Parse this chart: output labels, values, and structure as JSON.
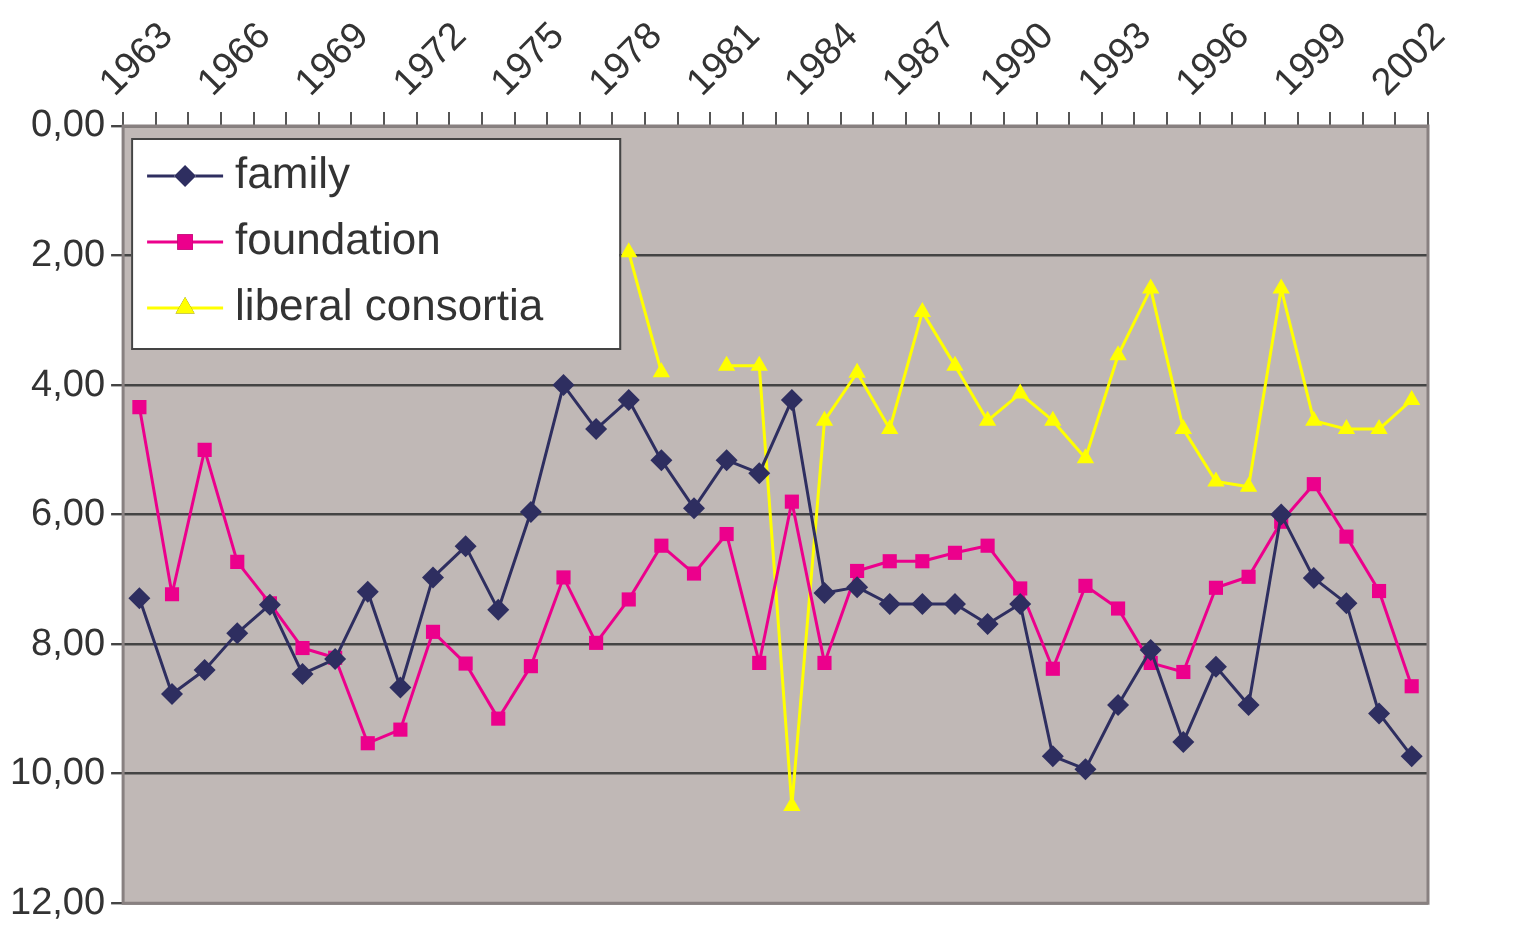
{
  "chart_data": {
    "type": "line",
    "categories": [
      "1963",
      null,
      null,
      "1966",
      null,
      null,
      "1969",
      null,
      null,
      "1972",
      null,
      null,
      "1975",
      null,
      null,
      "1978",
      null,
      null,
      "1981",
      null,
      null,
      "1984",
      null,
      null,
      "1987",
      null,
      null,
      "1990",
      null,
      null,
      "1993",
      null,
      null,
      "1996",
      null,
      null,
      "1999",
      null,
      null,
      "2002"
    ],
    "series": [
      {
        "name": "family",
        "color": "#2e2e60",
        "marker": "diamond",
        "values": [
          7.29,
          8.77,
          8.4,
          7.83,
          7.39,
          8.46,
          8.23,
          7.19,
          8.67,
          6.97,
          6.49,
          7.47,
          5.96,
          4.0,
          4.68,
          4.23,
          5.16,
          5.9,
          5.16,
          5.36,
          4.23,
          7.21,
          7.12,
          7.38,
          7.38,
          7.38,
          7.69,
          7.38,
          9.73,
          9.93,
          8.94,
          8.09,
          9.51,
          8.35,
          8.94,
          6.0,
          6.98,
          7.37,
          9.07,
          9.73
        ]
      },
      {
        "name": "foundation",
        "color": "#ec008c",
        "marker": "square",
        "values": [
          4.34,
          7.23,
          5.0,
          6.73,
          7.37,
          8.06,
          8.21,
          9.53,
          9.32,
          7.81,
          8.3,
          9.15,
          8.34,
          6.97,
          7.98,
          7.31,
          6.48,
          6.91,
          6.3,
          8.29,
          5.8,
          8.29,
          6.87,
          6.72,
          6.72,
          6.59,
          6.48,
          7.14,
          8.38,
          7.1,
          7.45,
          8.29,
          8.43,
          7.13,
          6.96,
          6.11,
          5.53,
          6.34,
          7.18,
          8.65
        ]
      },
      {
        "name": "liberal consortia",
        "color": "#ffff00",
        "marker": "triangle",
        "values": [
          null,
          null,
          null,
          null,
          null,
          null,
          null,
          null,
          null,
          null,
          null,
          null,
          null,
          null,
          null,
          1.95,
          3.8,
          null,
          3.7,
          3.7,
          10.5,
          4.55,
          3.81,
          4.68,
          2.87,
          3.7,
          4.55,
          4.13,
          4.55,
          5.13,
          3.54,
          2.51,
          4.68,
          5.49,
          5.57,
          2.51,
          4.55,
          4.68,
          4.68,
          4.23
        ]
      }
    ],
    "ylim": [
      12,
      0
    ],
    "yticks": [
      {
        "value": 0,
        "label": "0,00"
      },
      {
        "value": 2,
        "label": "2,00"
      },
      {
        "value": 4,
        "label": "4,00"
      },
      {
        "value": 6,
        "label": "6,00"
      },
      {
        "value": 8,
        "label": "8,00"
      },
      {
        "value": 10,
        "label": "10,00"
      },
      {
        "value": 12,
        "label": "12,00"
      }
    ],
    "grid": "y",
    "legend": "top left",
    "line_style": "solid"
  }
}
